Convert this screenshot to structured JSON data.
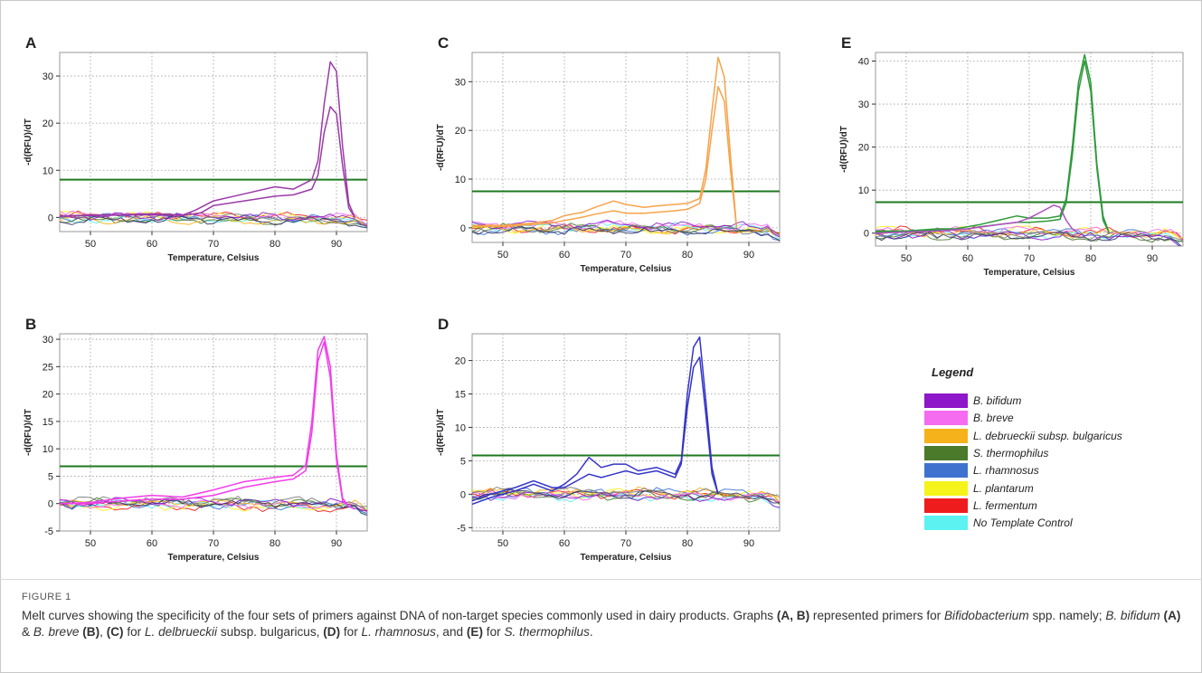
{
  "figure_label": "FIGURE 1",
  "caption": {
    "parts": [
      {
        "t": "Melt curves showing the specificity of the four sets of primers against DNA of non-target species commonly used in dairy products. Graphs "
      },
      {
        "t": "(A, B)",
        "s": "b"
      },
      {
        "t": " represented primers for "
      },
      {
        "t": "Bifidobacterium",
        "s": "i"
      },
      {
        "t": " spp. namely; "
      },
      {
        "t": "B. bifidum",
        "s": "i"
      },
      {
        "t": " "
      },
      {
        "t": "(A)",
        "s": "b"
      },
      {
        "t": " & "
      },
      {
        "t": "B. breve",
        "s": "i"
      },
      {
        "t": " "
      },
      {
        "t": "(B)",
        "s": "b"
      },
      {
        "t": ", "
      },
      {
        "t": "(C)",
        "s": "b"
      },
      {
        "t": " for "
      },
      {
        "t": "L. delbrueckii",
        "s": "i"
      },
      {
        "t": " subsp. bulgaricus, "
      },
      {
        "t": "(D)",
        "s": "b"
      },
      {
        "t": " for "
      },
      {
        "t": "L. rhamnosus",
        "s": "i"
      },
      {
        "t": ", and "
      },
      {
        "t": "(E)",
        "s": "b"
      },
      {
        "t": " for "
      },
      {
        "t": "S. thermophilus",
        "s": "i"
      },
      {
        "t": "."
      }
    ]
  },
  "legend": {
    "title": "Legend",
    "items": [
      {
        "label": "B. bifidum",
        "color": "#8e17c9"
      },
      {
        "label": "B. breve",
        "color": "#f56cf0"
      },
      {
        "label": "L. debrueckii subsp. bulgaricus",
        "color": "#f6b21a"
      },
      {
        "label": "S. thermophilus",
        "color": "#4a7a2a"
      },
      {
        "label": "L. rhamnosus",
        "color": "#3f72cf"
      },
      {
        "label": "L. plantarum",
        "color": "#f4f41a"
      },
      {
        "label": "L. fermentum",
        "color": "#ee1c1c"
      },
      {
        "label": "No Template Control",
        "color": "#5cf2f2"
      }
    ]
  },
  "colors": {
    "threshold": "#1e7a1e",
    "noise": [
      "#ee1c1c",
      "#f4f41a",
      "#5cf2f2",
      "#3f72cf",
      "#4a7a2a",
      "#f6b21a",
      "#f56cf0",
      "#8e17c9",
      "#333366",
      "#7a7a7a"
    ]
  },
  "chart_data": [
    {
      "panel": "A",
      "type": "line",
      "xlabel": "Temperature, Celsius",
      "ylabel": "-d(RFU)/dT",
      "xlim": [
        45,
        95
      ],
      "ylim": [
        -3,
        35
      ],
      "xticks": [
        50,
        60,
        70,
        80,
        90
      ],
      "yticks": [
        0,
        10,
        20,
        30
      ],
      "grid": true,
      "threshold": 8,
      "series": [
        {
          "color": "#9b3aa8",
          "x": [
            45,
            50,
            55,
            60,
            65,
            67,
            70,
            75,
            80,
            83,
            86,
            87,
            88,
            89,
            90,
            91,
            92,
            93
          ],
          "y": [
            0.3,
            0.5,
            0.6,
            0.8,
            0.5,
            1.5,
            3.5,
            5,
            6.5,
            6,
            8,
            12,
            24,
            33,
            31,
            15,
            3,
            0
          ]
        },
        {
          "color": "#9b3aa8",
          "x": [
            45,
            50,
            55,
            60,
            65,
            68,
            70,
            75,
            80,
            83,
            86,
            87,
            88,
            89,
            90,
            91,
            92,
            93
          ],
          "y": [
            0.2,
            0.4,
            0.5,
            0.6,
            0.4,
            1,
            2.5,
            3.5,
            4.5,
            4.8,
            6,
            9,
            18,
            23.5,
            22,
            11,
            2,
            0
          ]
        }
      ]
    },
    {
      "panel": "B",
      "type": "line",
      "xlabel": "Temperature, Celsius",
      "ylabel": "-d(RFU)/dT",
      "xlim": [
        45,
        95
      ],
      "ylim": [
        -5,
        31
      ],
      "xticks": [
        50,
        60,
        70,
        80,
        90
      ],
      "yticks": [
        -5,
        0,
        5,
        10,
        15,
        20,
        25,
        30
      ],
      "grid": true,
      "threshold": 6.8,
      "series": [
        {
          "color": "#f23ee8",
          "x": [
            45,
            50,
            55,
            60,
            65,
            70,
            75,
            80,
            83,
            85,
            86,
            87,
            88,
            89,
            90,
            91,
            92,
            93
          ],
          "y": [
            0,
            0.2,
            1,
            1.5,
            1.2,
            2.5,
            4,
            4.8,
            5.2,
            7,
            15,
            28,
            30.5,
            25,
            9,
            1,
            -0.5,
            -1
          ]
        },
        {
          "color": "#f23ee8",
          "x": [
            45,
            50,
            55,
            60,
            65,
            70,
            75,
            80,
            83,
            85,
            86,
            87,
            88,
            89,
            90,
            91,
            92,
            93
          ],
          "y": [
            0,
            0,
            0.5,
            0.8,
            0.8,
            1.5,
            3,
            4,
            4.5,
            6,
            13,
            26,
            29.5,
            23,
            8,
            0.5,
            -0.5,
            -1
          ]
        }
      ]
    },
    {
      "panel": "C",
      "type": "line",
      "xlabel": "Temperature, Celsius",
      "ylabel": "-d(RFU)/dT",
      "xlim": [
        45,
        95
      ],
      "ylim": [
        -3,
        36
      ],
      "xticks": [
        50,
        60,
        70,
        80,
        90
      ],
      "yticks": [
        0,
        10,
        20,
        30
      ],
      "grid": true,
      "threshold": 7.5,
      "series": [
        {
          "color": "#f7a34a",
          "x": [
            45,
            50,
            55,
            58,
            60,
            63,
            65,
            68,
            70,
            73,
            75,
            78,
            80,
            82,
            83,
            84,
            85,
            86,
            87,
            88
          ],
          "y": [
            0.5,
            0.5,
            1,
            1.5,
            2.5,
            3.2,
            4.2,
            5.5,
            4.8,
            4.2,
            4.5,
            4.8,
            5,
            6,
            12,
            24,
            35,
            31,
            15,
            0
          ]
        },
        {
          "color": "#f7a34a",
          "x": [
            45,
            50,
            55,
            58,
            60,
            63,
            65,
            68,
            70,
            73,
            75,
            78,
            80,
            82,
            83,
            84,
            85,
            86,
            87,
            88
          ],
          "y": [
            0.3,
            0.3,
            0.7,
            1,
            1.5,
            2.2,
            2.8,
            3.5,
            3,
            3,
            3.2,
            3.5,
            3.8,
            5,
            10,
            20,
            29,
            26,
            12,
            0
          ]
        }
      ]
    },
    {
      "panel": "D",
      "type": "line",
      "xlabel": "Temperature, Celsius",
      "ylabel": "-d(RFU)/dT",
      "xlim": [
        45,
        95
      ],
      "ylim": [
        -5.5,
        24
      ],
      "xticks": [
        50,
        60,
        70,
        80,
        90
      ],
      "yticks": [
        -5,
        0,
        5,
        10,
        15,
        20
      ],
      "grid": true,
      "threshold": 5.8,
      "series": [
        {
          "color": "#3535c8",
          "x": [
            45,
            48,
            52,
            55,
            58,
            60,
            62,
            64,
            66,
            68,
            70,
            72,
            75,
            78,
            79,
            80,
            81,
            82,
            83,
            84,
            85
          ],
          "y": [
            -1.5,
            -0.5,
            0.5,
            1.5,
            0.5,
            1.5,
            3,
            5.5,
            4,
            4.5,
            4.5,
            3.5,
            4,
            3,
            5,
            15,
            22,
            23.5,
            14,
            4,
            0
          ]
        },
        {
          "color": "#3535c8",
          "x": [
            45,
            48,
            52,
            55,
            58,
            60,
            62,
            64,
            66,
            68,
            70,
            72,
            75,
            78,
            79,
            80,
            81,
            82,
            83,
            84,
            85
          ],
          "y": [
            -1,
            0,
            1,
            2,
            1,
            1,
            2,
            3,
            2.5,
            3,
            3.5,
            3,
            3.5,
            2.5,
            4.5,
            13,
            19,
            20.5,
            12,
            3,
            0
          ]
        }
      ]
    },
    {
      "panel": "E",
      "type": "line",
      "xlabel": "Temperature, Celsius",
      "ylabel": "-d(RFU)/dT",
      "xlim": [
        45,
        95
      ],
      "ylim": [
        -3,
        42
      ],
      "xticks": [
        50,
        60,
        70,
        80,
        90
      ],
      "yticks": [
        0,
        10,
        20,
        30,
        40
      ],
      "grid": true,
      "threshold": 7.2,
      "series": [
        {
          "color": "#2e9a3a",
          "x": [
            45,
            50,
            55,
            58,
            60,
            62,
            65,
            68,
            70,
            73,
            75,
            76,
            77,
            78,
            79,
            80,
            81,
            82,
            83
          ],
          "y": [
            0.5,
            0.5,
            1,
            1,
            1.5,
            2,
            3,
            4,
            3.5,
            3.5,
            4,
            8,
            20,
            35,
            41.5,
            35,
            16,
            4,
            0
          ]
        },
        {
          "color": "#2e9a3a",
          "x": [
            45,
            50,
            55,
            58,
            60,
            62,
            65,
            68,
            70,
            73,
            75,
            76,
            77,
            78,
            79,
            80,
            81,
            82,
            83
          ],
          "y": [
            0.3,
            0.4,
            0.7,
            0.8,
            1,
            1.5,
            2,
            2.5,
            2.5,
            2.8,
            3.2,
            7,
            18,
            33,
            40,
            33,
            15,
            3,
            0
          ]
        },
        {
          "color": "#b04fc4",
          "x": [
            45,
            55,
            60,
            65,
            68,
            70,
            72,
            74,
            75,
            76,
            77,
            78
          ],
          "y": [
            0,
            0.5,
            1,
            2,
            2.5,
            3.5,
            5,
            6.5,
            6,
            3,
            1,
            0
          ]
        }
      ]
    }
  ]
}
